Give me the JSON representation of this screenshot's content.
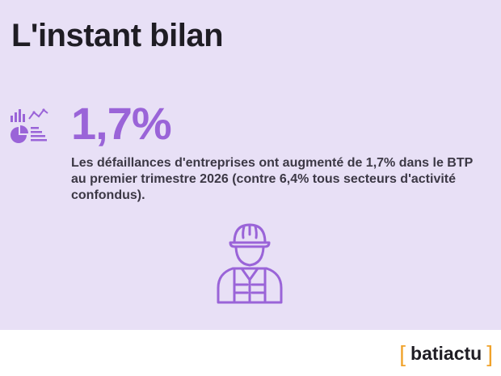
{
  "header": {
    "title": "L'instant bilan"
  },
  "stat": {
    "value": "1,7%",
    "description": "Les défaillances d'entreprises ont augmenté de 1,7% dans le BTP au premier trimestre 2026 (contre 6,4% tous secteurs d'activité confondus)."
  },
  "icons": {
    "stats": "chart-stats-icon",
    "worker": "construction-worker-icon"
  },
  "footer": {
    "bracket_open": "[",
    "brand": "batiactu",
    "bracket_close": "]"
  },
  "colors": {
    "background": "#e8e0f6",
    "accent": "#9a64d8",
    "bracket": "#f0a22a",
    "text": "#1f1d24"
  }
}
